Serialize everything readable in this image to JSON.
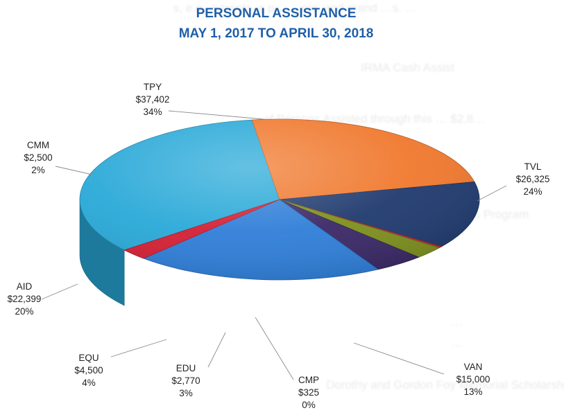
{
  "chart_data": {
    "type": "pie",
    "title": "PERSONAL ASSISTANCE",
    "subtitle": "MAY 1, 2017 TO APRIL 30, 2018",
    "slices": [
      {
        "label": "TPY",
        "amount": "$37,402",
        "value": 37402,
        "percent": "34%",
        "color": "#29a9d8"
      },
      {
        "label": "TVL",
        "amount": "$26,325",
        "value": 26325,
        "percent": "24%",
        "color": "#f0782d"
      },
      {
        "label": "VAN",
        "amount": "$15,000",
        "value": 15000,
        "percent": "13%",
        "color": "#1f3a6e"
      },
      {
        "label": "CMP",
        "amount": "$325",
        "value": 325,
        "percent": "0%",
        "color": "#c7252f"
      },
      {
        "label": "EDU",
        "amount": "$2,770",
        "value": 2770,
        "percent": "3%",
        "color": "#7d8f1e"
      },
      {
        "label": "EQU",
        "amount": "$4,500",
        "value": 4500,
        "percent": "4%",
        "color": "#3a2866"
      },
      {
        "label": "AID",
        "amount": "$22,399",
        "value": 22399,
        "percent": "20%",
        "color": "#2f7ed8"
      },
      {
        "label": "CMM",
        "amount": "$2,500",
        "value": 2500,
        "percent": "2%",
        "color": "#d42034"
      }
    ]
  }
}
